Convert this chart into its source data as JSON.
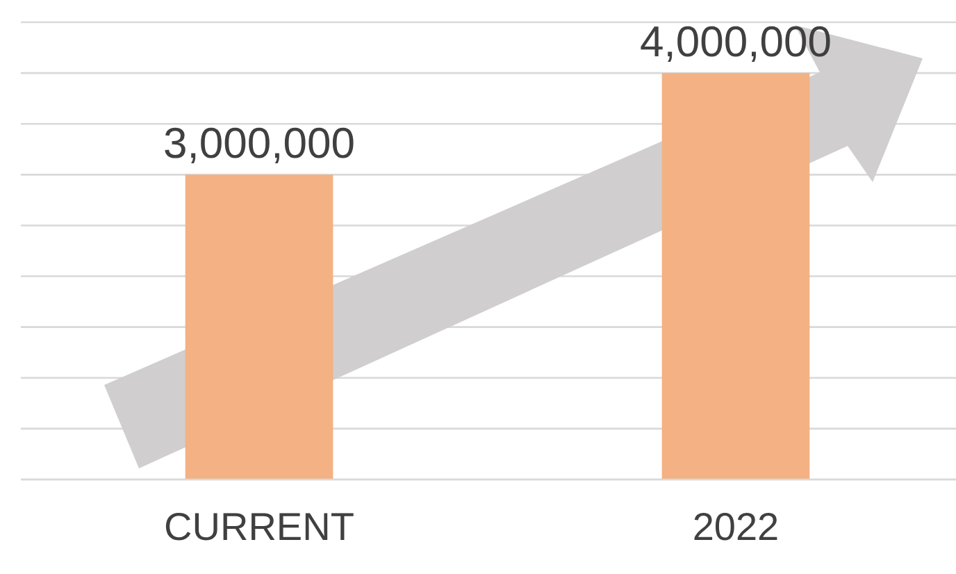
{
  "chart_data": {
    "type": "bar",
    "categories": [
      "CURRENT",
      "2022"
    ],
    "values": [
      3000000,
      4000000
    ],
    "color": "#f4b183",
    "value_labels": [
      "3,000,000",
      "4,000,000"
    ],
    "grid": "y",
    "tick_labels": "x"
  }
}
